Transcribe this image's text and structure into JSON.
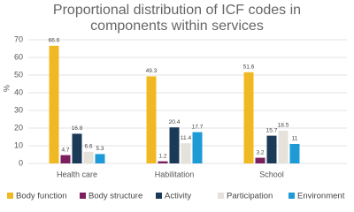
{
  "chart_data": {
    "type": "bar",
    "title": [
      "Proportional distribution of ICF codes in",
      "components within services"
    ],
    "y_label": "%",
    "categories": [
      "Health care",
      "Habilitation",
      "School"
    ],
    "series": [
      {
        "name": "Body function",
        "color": "#f0b923",
        "values": [
          66.6,
          49.3,
          51.6
        ]
      },
      {
        "name": "Body structure",
        "color": "#7b1f5e",
        "values": [
          4.7,
          1.2,
          3.2
        ]
      },
      {
        "name": "Activity",
        "color": "#1b3a57",
        "values": [
          16.8,
          20.4,
          15.7
        ]
      },
      {
        "name": "Participation",
        "color": "#e4e2da",
        "values": [
          6.6,
          11.4,
          18.5
        ]
      },
      {
        "name": "Environment",
        "color": "#1e9ad6",
        "values": [
          5.3,
          17.7,
          11
        ]
      }
    ],
    "ylim": [
      0,
      70
    ],
    "yticks": [
      0,
      10,
      20,
      30,
      40,
      50,
      60,
      70
    ],
    "grid": true,
    "legend": "bottom"
  }
}
